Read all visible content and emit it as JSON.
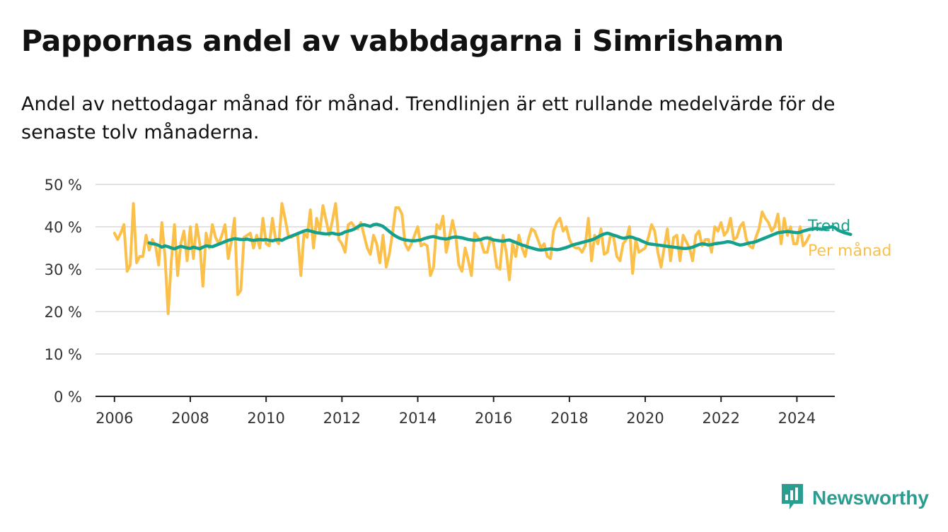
{
  "title": "Pappornas andel av vabbdagarna i Simrishamn",
  "subtitle": "Andel av nettodagar månad för månad. Trendlinjen är ett rullande medelvärde för de senaste tolv månaderna.",
  "brand": {
    "name": "Newsworthy",
    "icon": "newsworthy-chart-bubble-icon",
    "color": "#2a9d8f"
  },
  "colors": {
    "trend": "#14a08c",
    "monthly": "#fbc04a",
    "grid": "#d9d9d9",
    "axis": "#222222"
  },
  "chart_data": {
    "type": "line",
    "title": "Pappornas andel av vabbdagarna i Simrishamn",
    "xlabel": "",
    "ylabel": "",
    "x_ticks": [
      "2006",
      "2008",
      "2010",
      "2012",
      "2014",
      "2016",
      "2018",
      "2020",
      "2022",
      "2024"
    ],
    "y_ticks": [
      "0 %",
      "10 %",
      "20 %",
      "30 %",
      "40 %",
      "50 %"
    ],
    "ylim": [
      0,
      50
    ],
    "xlim": [
      "2005-07",
      "2024-12"
    ],
    "grid": true,
    "legend": "labels at end of lines, right",
    "series": [
      {
        "name": "Per månad",
        "color": "#fbc04a",
        "start": "2006-01",
        "values": [
          38.5,
          37.0,
          38.5,
          40.5,
          29.5,
          31.0,
          45.5,
          31.5,
          33.0,
          33.0,
          38.0,
          34.5,
          37.0,
          35.5,
          31.0,
          41.0,
          33.0,
          19.5,
          32.0,
          40.5,
          28.5,
          36.0,
          39.0,
          32.0,
          40.0,
          32.5,
          40.5,
          36.0,
          26.0,
          38.5,
          35.0,
          40.5,
          37.5,
          36.0,
          38.0,
          40.5,
          32.5,
          36.5,
          42.0,
          24.0,
          25.0,
          37.5,
          38.0,
          38.5,
          35.0,
          38.0,
          35.0,
          42.0,
          36.0,
          35.5,
          42.0,
          37.0,
          36.0,
          45.5,
          42.0,
          38.0,
          37.5,
          38.0,
          38.0,
          28.5,
          38.5,
          37.5,
          44.0,
          35.0,
          42.0,
          39.0,
          45.0,
          41.5,
          38.0,
          41.5,
          45.5,
          37.0,
          36.0,
          34.0,
          40.5,
          41.0,
          40.0,
          39.5,
          41.0,
          38.0,
          35.0,
          33.5,
          38.0,
          36.0,
          31.5,
          38.0,
          30.5,
          33.5,
          38.5,
          44.5,
          44.5,
          43.0,
          36.0,
          34.5,
          36.0,
          38.0,
          40.0,
          35.5,
          36.0,
          35.5,
          28.5,
          30.5,
          40.5,
          39.5,
          42.5,
          34.0,
          37.5,
          41.5,
          38.0,
          31.0,
          29.5,
          35.0,
          32.0,
          28.5,
          38.5,
          37.5,
          36.5,
          34.0,
          34.0,
          37.5,
          36.0,
          30.5,
          30.0,
          38.0,
          34.0,
          27.5,
          36.0,
          33.0,
          38.0,
          35.0,
          33.0,
          37.0,
          39.5,
          39.0,
          37.0,
          35.0,
          36.0,
          33.0,
          32.5,
          39.0,
          41.0,
          42.0,
          39.0,
          40.0,
          37.0,
          35.5,
          35.0,
          35.0,
          34.0,
          35.5,
          42.0,
          32.0,
          38.0,
          36.0,
          39.5,
          33.5,
          34.0,
          38.0,
          37.5,
          33.0,
          32.0,
          36.0,
          37.0,
          40.0,
          29.0,
          37.0,
          34.0,
          34.5,
          35.0,
          37.5,
          40.5,
          39.0,
          34.0,
          30.5,
          35.0,
          39.5,
          32.0,
          37.5,
          38.0,
          32.0,
          38.0,
          36.5,
          35.0,
          32.0,
          38.0,
          39.0,
          35.5,
          37.0,
          37.0,
          34.0,
          40.0,
          39.0,
          41.0,
          38.0,
          39.0,
          42.0,
          37.0,
          37.5,
          40.0,
          41.0,
          37.0,
          35.5,
          35.0,
          37.5,
          39.5,
          43.5,
          42.0,
          41.0,
          39.0,
          40.0,
          43.0,
          36.0,
          42.0,
          38.0,
          40.0,
          36.0,
          36.0,
          40.0,
          35.5,
          36.5,
          38.0
        ]
      },
      {
        "name": "Trend",
        "color": "#14a08c",
        "start": "2006-12",
        "values": [
          36.2,
          36.0,
          35.9,
          35.6,
          35.2,
          35.5,
          35.3,
          35.0,
          34.8,
          35.1,
          35.4,
          35.2,
          35.0,
          34.9,
          35.2,
          35.0,
          34.8,
          35.2,
          35.5,
          35.4,
          35.3,
          35.6,
          35.9,
          36.2,
          36.5,
          36.8,
          37.0,
          37.2,
          37.1,
          37.0,
          37.0,
          37.1,
          36.9,
          36.8,
          36.9,
          37.0,
          36.9,
          37.0,
          36.8,
          36.7,
          36.9,
          37.0,
          36.8,
          37.2,
          37.5,
          37.8,
          38.1,
          38.4,
          38.7,
          39.0,
          39.2,
          39.0,
          38.8,
          38.6,
          38.5,
          38.4,
          38.3,
          38.4,
          38.5,
          38.3,
          38.2,
          38.4,
          38.8,
          39.0,
          39.2,
          39.5,
          40.0,
          40.4,
          40.5,
          40.3,
          40.1,
          40.5,
          40.6,
          40.4,
          40.1,
          39.5,
          38.9,
          38.3,
          37.8,
          37.4,
          37.1,
          36.9,
          36.8,
          36.7,
          36.7,
          36.8,
          36.9,
          37.2,
          37.4,
          37.6,
          37.7,
          37.5,
          37.3,
          37.2,
          37.1,
          37.3,
          37.5,
          37.6,
          37.5,
          37.4,
          37.2,
          37.0,
          36.9,
          36.8,
          36.9,
          37.0,
          37.3,
          37.4,
          37.2,
          36.9,
          36.8,
          36.7,
          36.6,
          36.8,
          36.9,
          36.6,
          36.3,
          36.0,
          35.7,
          35.5,
          35.2,
          35.0,
          34.8,
          34.6,
          34.5,
          34.6,
          34.7,
          34.8,
          34.7,
          34.6,
          34.7,
          34.9,
          35.1,
          35.4,
          35.7,
          35.9,
          36.1,
          36.3,
          36.5,
          36.7,
          36.9,
          37.2,
          37.6,
          38.0,
          38.3,
          38.5,
          38.3,
          38.0,
          37.8,
          37.5,
          37.3,
          37.4,
          37.6,
          37.5,
          37.2,
          37.0,
          36.6,
          36.3,
          36.0,
          35.9,
          35.8,
          35.7,
          35.6,
          35.5,
          35.4,
          35.3,
          35.2,
          35.1,
          35.0,
          34.9,
          34.9,
          35.0,
          35.2,
          35.5,
          35.8,
          36.0,
          35.9,
          35.7,
          35.8,
          36.0,
          36.1,
          36.2,
          36.3,
          36.5,
          36.4,
          36.2,
          35.9,
          35.7,
          35.8,
          36.0,
          36.2,
          36.3,
          36.5,
          36.8,
          37.1,
          37.4,
          37.7,
          38.0,
          38.3,
          38.6,
          38.7,
          38.8,
          38.9,
          38.8,
          38.7,
          38.6,
          38.7,
          39.0,
          39.2,
          39.4,
          39.5,
          39.6,
          39.5,
          39.4,
          39.6,
          39.8,
          40.0,
          39.8,
          39.2,
          38.9,
          38.6,
          38.4,
          38.2
        ]
      }
    ]
  }
}
